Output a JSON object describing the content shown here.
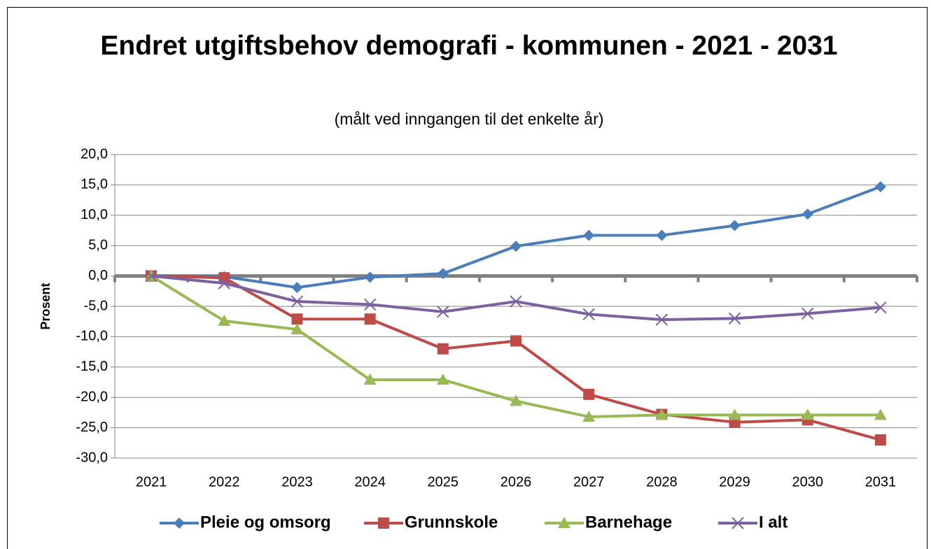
{
  "chart_data": {
    "type": "line",
    "title": "Endret utgiftsbehov demografi - kommunen - 2021 - 2031",
    "subtitle": "(målt ved inngangen til det enkelte år)",
    "y_label": "Prosent",
    "categories": [
      "2021",
      "2022",
      "2023",
      "2024",
      "2025",
      "2026",
      "2027",
      "2028",
      "2029",
      "2030",
      "2031"
    ],
    "series": [
      {
        "name": "Pleie og omsorg",
        "color": "#4a7ebb",
        "marker": "diamond",
        "values": [
          0,
          -0.1,
          -1.9,
          -0.2,
          0.4,
          4.9,
          6.7,
          6.7,
          8.3,
          10.2,
          14.7
        ]
      },
      {
        "name": "Grunnskole",
        "color": "#be4b48",
        "marker": "square",
        "values": [
          0,
          -0.3,
          -7.1,
          -7.1,
          -12.0,
          -10.7,
          -19.5,
          -22.8,
          -24.1,
          -23.7,
          -27.0
        ]
      },
      {
        "name": "Barnehage",
        "color": "#98b954",
        "marker": "triangle",
        "values": [
          0,
          -7.4,
          -8.8,
          -17.1,
          -17.1,
          -20.6,
          -23.2,
          -22.9,
          -22.9,
          -22.9,
          -22.9
        ]
      },
      {
        "name": "I alt",
        "color": "#7d60a0",
        "marker": "x",
        "values": [
          0,
          -1.2,
          -4.2,
          -4.7,
          -5.9,
          -4.2,
          -6.3,
          -7.2,
          -7.0,
          -6.2,
          -5.2
        ]
      }
    ],
    "ylim": [
      -30,
      20
    ],
    "yticks": [
      {
        "value": -30,
        "label": "-30,0"
      },
      {
        "value": -25,
        "label": "-25,0"
      },
      {
        "value": -20,
        "label": "-20,0"
      },
      {
        "value": -15,
        "label": "-15,0"
      },
      {
        "value": -10,
        "label": "-10,0"
      },
      {
        "value": -5,
        "label": "-5,0"
      },
      {
        "value": 0,
        "label": "0,0"
      },
      {
        "value": 5,
        "label": "5,0"
      },
      {
        "value": 10,
        "label": "10,0"
      },
      {
        "value": 15,
        "label": "15,0"
      },
      {
        "value": 20,
        "label": "20,0"
      }
    ],
    "grid": true,
    "legend": "bottom"
  }
}
